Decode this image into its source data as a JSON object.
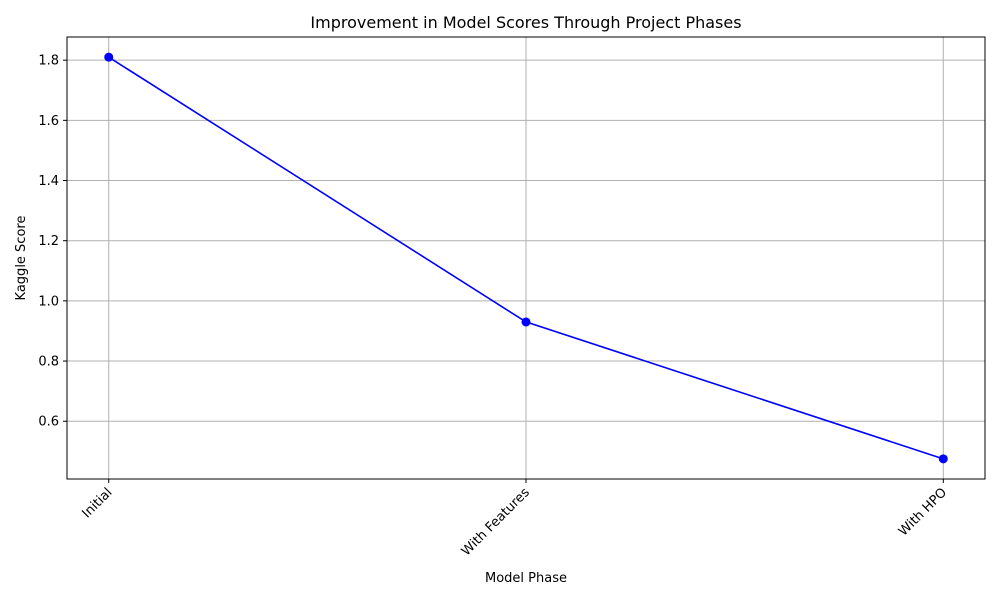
{
  "chart_data": {
    "type": "line",
    "title": "Improvement in Model Scores Through Project Phases",
    "xlabel": "Model Phase",
    "ylabel": "Kaggle Score",
    "categories": [
      "Initial",
      "With Features",
      "With HPO"
    ],
    "series": [
      {
        "values": [
          1.81,
          0.93,
          0.475
        ],
        "color": "#0000ff",
        "marker": "circle"
      }
    ],
    "yticks": [
      0.6,
      0.8,
      1.0,
      1.2,
      1.4,
      1.6,
      1.8
    ],
    "ytick_labels": [
      "0.6",
      "0.8",
      "1.0",
      "1.2",
      "1.4",
      "1.6",
      "1.8"
    ],
    "ylim": [
      0.408,
      1.877
    ],
    "grid": true,
    "xtick_rotation": 45
  }
}
